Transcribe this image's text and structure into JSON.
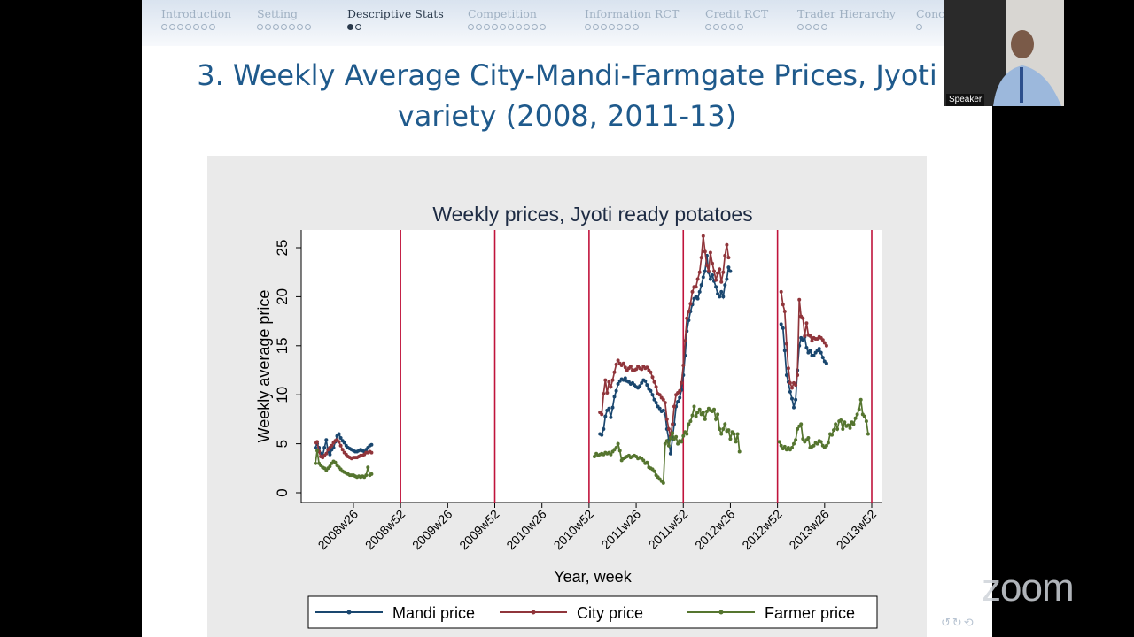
{
  "nav": {
    "sections": [
      {
        "label": "Introduction",
        "dots": 7,
        "filled": 0,
        "active": false
      },
      {
        "label": "Setting",
        "dots": 7,
        "filled": 0,
        "active": false
      },
      {
        "label": "Descriptive Stats",
        "dots": 2,
        "filled": 1,
        "active": true
      },
      {
        "label": "Competition",
        "dots": 10,
        "filled": 0,
        "active": false
      },
      {
        "label": "Information RCT",
        "dots": 7,
        "filled": 0,
        "active": false
      },
      {
        "label": "Credit RCT",
        "dots": 5,
        "filled": 0,
        "active": false
      },
      {
        "label": "Trader Hierarchy",
        "dots": 4,
        "filled": 0,
        "active": false
      },
      {
        "label": "Conc",
        "dots": 1,
        "filled": 0,
        "active": false
      }
    ]
  },
  "slide": {
    "title_line1": "3. Weekly Average City-Mandi-Farmgate Prices, Jyoti",
    "title_line2": "variety (2008, 2011-13)"
  },
  "chart_data": {
    "type": "line",
    "title": "Weekly prices, Jyoti ready potatoes",
    "xlabel": "Year, week",
    "ylabel": "Weekly average price",
    "ylim": [
      0,
      25
    ],
    "yticks": [
      0,
      5,
      10,
      15,
      20,
      25
    ],
    "xticks": [
      "2008w26",
      "2008w52",
      "2009w26",
      "2009w52",
      "2010w26",
      "2010w52",
      "2011w26",
      "2011w52",
      "2012w26",
      "2012w52",
      "2013w26",
      "2013w52"
    ],
    "vlines": [
      "2008w52",
      "2009w52",
      "2010w52",
      "2011w52",
      "2012w52",
      "2013w52"
    ],
    "legend_position": "bottom",
    "colors": {
      "mandi": "#1a476f",
      "city": "#90353b",
      "farmer": "#55752f",
      "vline": "#c0143c"
    },
    "series": [
      {
        "name": "Mandi price",
        "segments": [
          {
            "start": "2008w5",
            "values": [
              4.6,
              5.0,
              4.6,
              4.0,
              3.8,
              4.6,
              5.4,
              4.2,
              3.9,
              4.4,
              4.6,
              5.2,
              5.8,
              6.0,
              5.6,
              5.3,
              5.1,
              4.8,
              4.6,
              4.5,
              4.4,
              4.3,
              4.2,
              4.2,
              4.3,
              4.4,
              4.3,
              4.2,
              4.4,
              4.6,
              4.8,
              4.9
            ]
          },
          {
            "start": "2011w6",
            "values": [
              6.0,
              5.9,
              6.5,
              7.8,
              8.4,
              8.6,
              7.7,
              8.7,
              9.8,
              10.4,
              11.1,
              11.4,
              11.6,
              11.5,
              11.7,
              11.4,
              11.3,
              11.1,
              11.2,
              11.0,
              10.8,
              10.7,
              10.9,
              11.2,
              11.5,
              11.4,
              11.0,
              10.6,
              10.4,
              10.0,
              9.5,
              9.2,
              8.8,
              8.6,
              8.3,
              8.4,
              8.0,
              6.5,
              5.4,
              4.0,
              5.5,
              7.0,
              8.8,
              9.3,
              9.7,
              10.5,
              12.0,
              14.0,
              16.5,
              17.6,
              18.5,
              19.2,
              19.8,
              20.0,
              19.8,
              20.5,
              21.2,
              22.0,
              22.6,
              24.2,
              22.5,
              21.8,
              22.2,
              21.6,
              21.0,
              20.3,
              20.0,
              20.5,
              20.0,
              21.2,
              21.8,
              23.0,
              22.6
            ]
          },
          {
            "start": "2013w2",
            "values": [
              17.2,
              16.8,
              14.5,
              12.0,
              11.3,
              10.3,
              9.6,
              8.7,
              9.5,
              12.5,
              15.0,
              15.8,
              15.6,
              15.9,
              14.8,
              14.3,
              14.5,
              14.0,
              14.0,
              14.3,
              14.5,
              14.7,
              14.3,
              13.8,
              13.4,
              13.2
            ]
          }
        ]
      },
      {
        "name": "City price",
        "segments": [
          {
            "start": "2008w5",
            "values": [
              5.1,
              5.2,
              4.2,
              3.7,
              3.6,
              3.8,
              4.0,
              4.4,
              4.6,
              4.8,
              5.1,
              5.3,
              5.4,
              5.2,
              4.8,
              4.4,
              4.1,
              3.9,
              3.7,
              3.6,
              3.5,
              3.6,
              3.6,
              3.6,
              3.7,
              3.8,
              3.8,
              3.9,
              4.1,
              4.1,
              4.2,
              4.1
            ]
          },
          {
            "start": "2011w6",
            "values": [
              8.2,
              8.0,
              10.1,
              11.5,
              10.2,
              11.3,
              10.8,
              11.5,
              12.3,
              13.1,
              13.5,
              13.2,
              13.0,
              13.2,
              12.8,
              12.5,
              12.7,
              12.9,
              12.5,
              12.5,
              12.6,
              12.9,
              12.7,
              12.6,
              12.9,
              12.7,
              12.8,
              12.5,
              12.3,
              11.8,
              11.3,
              10.8,
              10.1,
              10.0,
              9.7,
              9.5,
              9.2,
              7.5,
              6.5,
              5.8,
              7.0,
              8.8,
              10.0,
              10.2,
              10.4,
              11.2,
              13.0,
              15.5,
              17.8,
              18.5,
              19.3,
              20.5,
              21.0,
              21.0,
              21.8,
              22.5,
              24.0,
              26.2,
              24.6,
              23.2,
              22.6,
              24.5,
              23.4,
              22.6,
              21.7,
              22.4,
              22.8,
              21.5,
              22.5,
              24.2,
              25.3,
              24.0
            ]
          },
          {
            "start": "2013w2",
            "values": [
              20.5,
              19.2,
              18.5,
              15.2,
              12.7,
              11.2,
              10.7,
              11.2,
              11.0,
              12.0,
              19.7,
              18.0,
              17.8,
              16.0,
              17.3,
              16.1,
              16.0,
              15.5,
              15.8,
              15.7,
              15.7,
              15.9,
              15.8,
              15.6,
              15.3,
              15.0
            ]
          }
        ]
      },
      {
        "name": "Farmer price",
        "segments": [
          {
            "start": "2008w5",
            "values": [
              3.0,
              4.3,
              3.0,
              2.8,
              2.6,
              2.5,
              2.3,
              2.5,
              2.7,
              3.0,
              3.2,
              3.1,
              2.8,
              2.6,
              2.4,
              2.2,
              2.1,
              2.0,
              1.9,
              1.8,
              1.8,
              1.8,
              1.7,
              1.6,
              1.7,
              1.6,
              1.7,
              1.6,
              1.8,
              2.6,
              1.8,
              1.9
            ]
          },
          {
            "start": "2011w3",
            "values": [
              3.7,
              4.0,
              3.8,
              3.9,
              4.0,
              3.9,
              4.1,
              4.0,
              4.1,
              3.9,
              4.2,
              4.4,
              4.6,
              5.0,
              4.3,
              3.3,
              3.5,
              3.6,
              3.7,
              3.8,
              3.6,
              3.7,
              3.8,
              3.7,
              3.5,
              3.6,
              3.5,
              3.3,
              3.0,
              3.1,
              2.6,
              2.5,
              2.4,
              2.2,
              1.8,
              1.6,
              1.4,
              1.2,
              1.0,
              5.0,
              5.3,
              4.8,
              5.6,
              6.1,
              5.5,
              5.7,
              5.0,
              5.3,
              5.2,
              5.8,
              6.2,
              6.0,
              7.0,
              7.3,
              7.9,
              8.8,
              7.8,
              8.2,
              8.5,
              8.0,
              8.2,
              7.5,
              8.3,
              8.6,
              8.4,
              8.3,
              8.5,
              7.5,
              8.0,
              6.5,
              6.0,
              6.5,
              7.0,
              6.3,
              6.4,
              5.5,
              6.2,
              6.0,
              5.2,
              6.0,
              4.2
            ]
          },
          {
            "start": "2013w1",
            "values": [
              5.2,
              4.8,
              4.5,
              4.7,
              4.4,
              4.6,
              4.4,
              4.6,
              5.0,
              5.4,
              6.5,
              6.8,
              7.0,
              5.5,
              5.2,
              5.4,
              5.6,
              4.6,
              4.7,
              4.8,
              5.1,
              5.0,
              5.3,
              5.2,
              4.8,
              4.6,
              4.8,
              5.1,
              6.0,
              5.9,
              6.4,
              7.0,
              6.5,
              7.3,
              7.4,
              6.5,
              7.2,
              6.8,
              6.9,
              6.6,
              7.2,
              7.0,
              7.6,
              8.0,
              8.5,
              9.5,
              8.0,
              7.8,
              7.3,
              6.0
            ]
          }
        ]
      }
    ]
  },
  "video": {
    "speaker_label": "Speaker"
  },
  "zoom": {
    "logo_text": "zoom"
  },
  "pdf_nav": {
    "glyphs": "↺↻⟲"
  }
}
